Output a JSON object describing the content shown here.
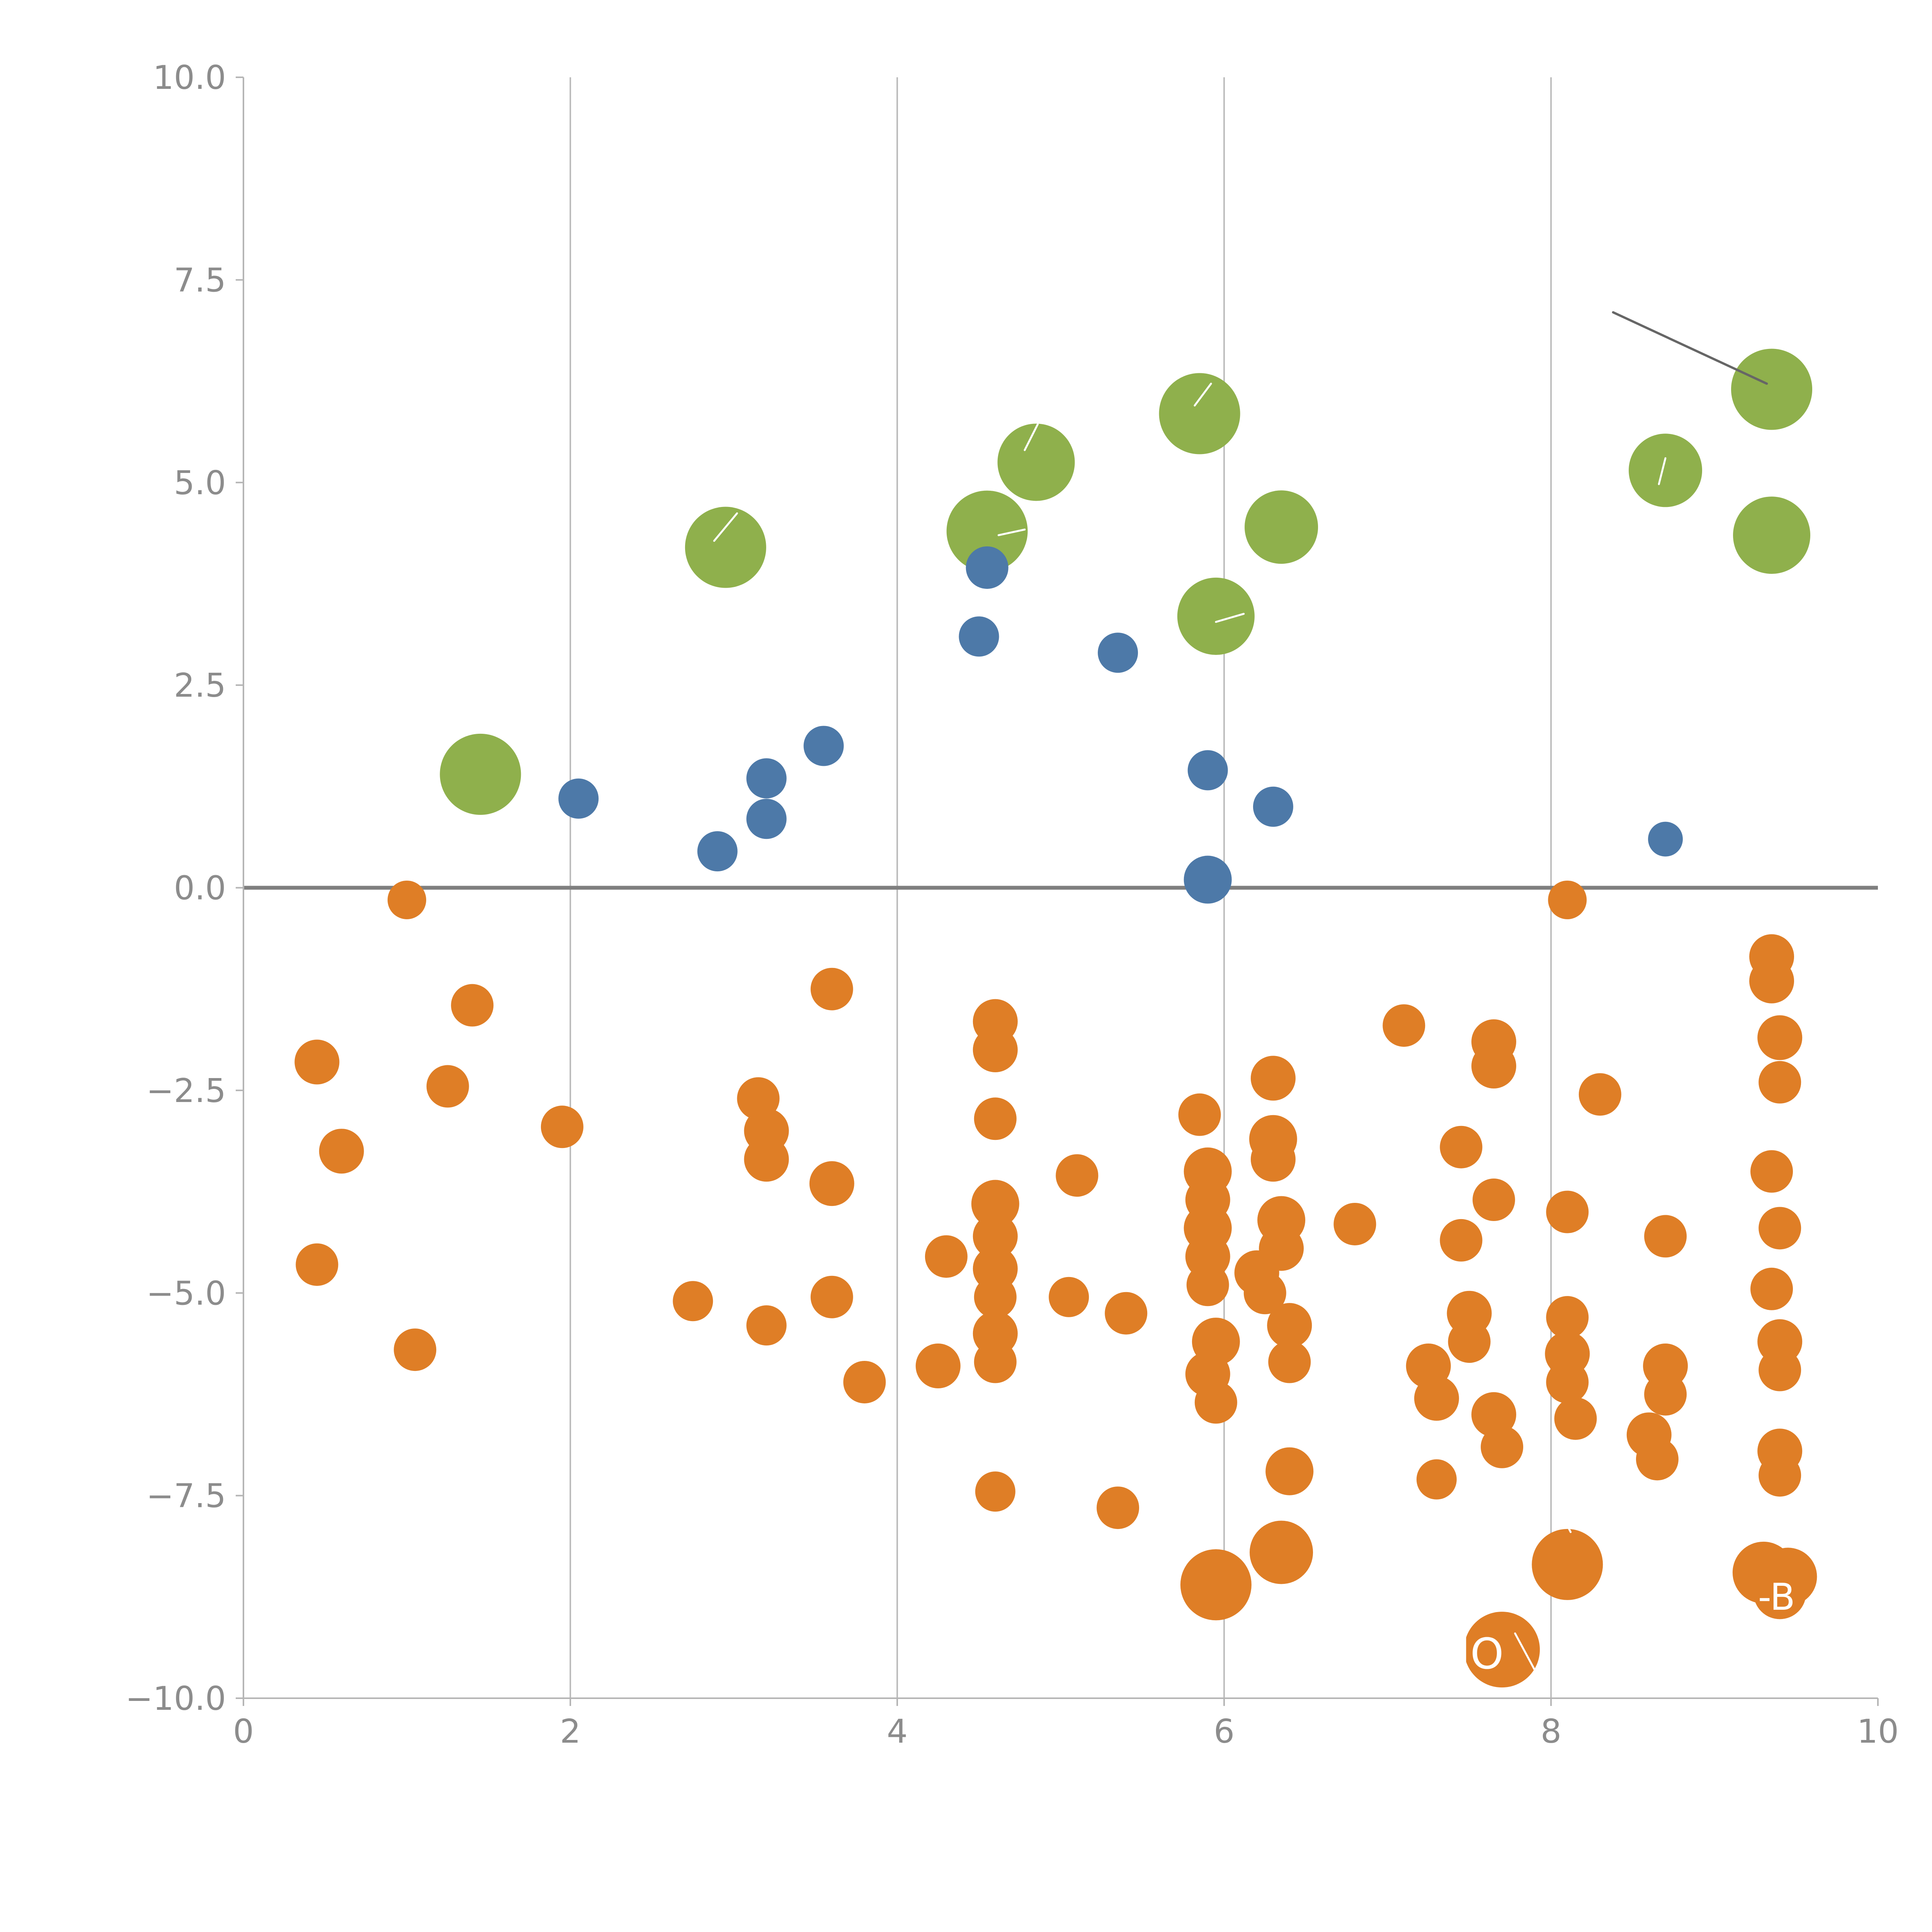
{
  "figure": {
    "background": "#ffffff"
  },
  "chart_data": {
    "type": "scatter",
    "title": "",
    "xlabel": "",
    "ylabel": "",
    "xlim": [
      0,
      10
    ],
    "ylim": [
      -10,
      10
    ],
    "grid": "vertical-only",
    "legend": "none",
    "x_ticks": [
      {
        "value": 0,
        "label": "0"
      },
      {
        "value": 2,
        "label": "2"
      },
      {
        "value": 4,
        "label": "4"
      },
      {
        "value": 6,
        "label": "6"
      },
      {
        "value": 8,
        "label": "8"
      },
      {
        "value": 10,
        "label": "10"
      }
    ],
    "y_ticks": [
      {
        "value": 10,
        "label": "10.0"
      },
      {
        "value": 7.5,
        "label": "7.5"
      },
      {
        "value": 5,
        "label": "5.0"
      },
      {
        "value": 2.5,
        "label": "2.5"
      },
      {
        "value": 0,
        "label": "0.0"
      },
      {
        "value": -2.5,
        "label": "−2.5"
      },
      {
        "value": -5,
        "label": "−5.0"
      },
      {
        "value": -7.5,
        "label": "−7.5"
      },
      {
        "value": -10,
        "label": "−10.0"
      }
    ],
    "gridline_x_values": [
      2,
      4,
      6,
      8
    ],
    "zero_line_y": 0,
    "style": {
      "grid_color": "#bdbdbd",
      "zero_line_color": "#7f7f7f",
      "spine_color": "#b5b5b5",
      "tick_label_color": "#8c8c8c",
      "tick_font_size": 85
    },
    "series": [
      {
        "name": "green",
        "color": "#8fb04c",
        "points": [
          {
            "x": 1.45,
            "y": 1.4,
            "r": 105
          },
          {
            "x": 2.95,
            "y": 4.2,
            "r": 105
          },
          {
            "x": 4.55,
            "y": 4.4,
            "r": 105
          },
          {
            "x": 4.85,
            "y": 5.25,
            "r": 100
          },
          {
            "x": 5.85,
            "y": 5.85,
            "r": 105
          },
          {
            "x": 5.95,
            "y": 3.35,
            "r": 100
          },
          {
            "x": 6.35,
            "y": 4.45,
            "r": 95
          },
          {
            "x": 8.7,
            "y": 5.15,
            "r": 95
          },
          {
            "x": 9.35,
            "y": 6.15,
            "r": 105
          },
          {
            "x": 9.35,
            "y": 4.35,
            "r": 100
          }
        ]
      },
      {
        "name": "blue",
        "color": "#4d79a8",
        "points": [
          {
            "x": 2.05,
            "y": 1.1,
            "r": 52
          },
          {
            "x": 2.9,
            "y": 0.45,
            "r": 52
          },
          {
            "x": 3.2,
            "y": 1.35,
            "r": 52
          },
          {
            "x": 3.2,
            "y": 0.85,
            "r": 52
          },
          {
            "x": 3.55,
            "y": 1.75,
            "r": 52
          },
          {
            "x": 4.55,
            "y": 3.95,
            "r": 55
          },
          {
            "x": 4.5,
            "y": 3.1,
            "r": 52
          },
          {
            "x": 5.35,
            "y": 2.9,
            "r": 52
          },
          {
            "x": 5.9,
            "y": 1.45,
            "r": 52
          },
          {
            "x": 6.3,
            "y": 1.0,
            "r": 52
          },
          {
            "x": 5.9,
            "y": 0.1,
            "r": 62
          },
          {
            "x": 8.7,
            "y": 0.6,
            "r": 45
          }
        ]
      },
      {
        "name": "orange",
        "color": "#df7e26",
        "points": [
          {
            "x": 1.0,
            "y": -0.15,
            "r": 50
          },
          {
            "x": 0.45,
            "y": -2.15,
            "r": 58
          },
          {
            "x": 0.6,
            "y": -3.25,
            "r": 58
          },
          {
            "x": 0.45,
            "y": -4.65,
            "r": 55
          },
          {
            "x": 1.05,
            "y": -5.7,
            "r": 55
          },
          {
            "x": 1.25,
            "y": -2.45,
            "r": 55
          },
          {
            "x": 1.4,
            "y": -1.45,
            "r": 55
          },
          {
            "x": 1.95,
            "y": -2.95,
            "r": 55
          },
          {
            "x": 2.75,
            "y": -5.1,
            "r": 52
          },
          {
            "x": 3.15,
            "y": -2.6,
            "r": 55
          },
          {
            "x": 3.2,
            "y": -3.0,
            "r": 58
          },
          {
            "x": 3.2,
            "y": -3.35,
            "r": 58
          },
          {
            "x": 3.2,
            "y": -5.4,
            "r": 52
          },
          {
            "x": 3.6,
            "y": -1.25,
            "r": 55
          },
          {
            "x": 3.6,
            "y": -3.65,
            "r": 58
          },
          {
            "x": 3.6,
            "y": -5.05,
            "r": 55
          },
          {
            "x": 3.8,
            "y": -6.1,
            "r": 55
          },
          {
            "x": 4.3,
            "y": -4.55,
            "r": 55
          },
          {
            "x": 4.25,
            "y": -5.9,
            "r": 58
          },
          {
            "x": 4.6,
            "y": -1.65,
            "r": 58
          },
          {
            "x": 4.6,
            "y": -2.0,
            "r": 58
          },
          {
            "x": 4.6,
            "y": -2.85,
            "r": 55
          },
          {
            "x": 4.6,
            "y": -3.9,
            "r": 62
          },
          {
            "x": 4.6,
            "y": -4.3,
            "r": 58
          },
          {
            "x": 4.6,
            "y": -4.7,
            "r": 58
          },
          {
            "x": 4.6,
            "y": -5.05,
            "r": 55
          },
          {
            "x": 4.6,
            "y": -5.5,
            "r": 58
          },
          {
            "x": 4.6,
            "y": -5.85,
            "r": 55
          },
          {
            "x": 4.6,
            "y": -7.45,
            "r": 52
          },
          {
            "x": 5.1,
            "y": -3.55,
            "r": 55
          },
          {
            "x": 5.05,
            "y": -5.05,
            "r": 52
          },
          {
            "x": 5.4,
            "y": -5.25,
            "r": 55
          },
          {
            "x": 5.35,
            "y": -7.65,
            "r": 55
          },
          {
            "x": 5.85,
            "y": -2.8,
            "r": 55
          },
          {
            "x": 5.9,
            "y": -3.5,
            "r": 62
          },
          {
            "x": 5.9,
            "y": -3.85,
            "r": 58
          },
          {
            "x": 5.9,
            "y": -4.2,
            "r": 62
          },
          {
            "x": 5.9,
            "y": -4.55,
            "r": 58
          },
          {
            "x": 5.9,
            "y": -4.9,
            "r": 55
          },
          {
            "x": 5.95,
            "y": -5.6,
            "r": 62
          },
          {
            "x": 5.9,
            "y": -6.0,
            "r": 58
          },
          {
            "x": 5.95,
            "y": -6.35,
            "r": 55
          },
          {
            "x": 5.95,
            "y": -8.6,
            "r": 92
          },
          {
            "x": 6.2,
            "y": -4.75,
            "r": 58
          },
          {
            "x": 6.25,
            "y": -5.0,
            "r": 55
          },
          {
            "x": 6.3,
            "y": -2.35,
            "r": 58
          },
          {
            "x": 6.3,
            "y": -3.1,
            "r": 62
          },
          {
            "x": 6.3,
            "y": -3.35,
            "r": 58
          },
          {
            "x": 6.35,
            "y": -4.1,
            "r": 62
          },
          {
            "x": 6.35,
            "y": -4.45,
            "r": 58
          },
          {
            "x": 6.4,
            "y": -5.4,
            "r": 58
          },
          {
            "x": 6.4,
            "y": -5.85,
            "r": 55
          },
          {
            "x": 6.4,
            "y": -7.2,
            "r": 62
          },
          {
            "x": 6.35,
            "y": -8.2,
            "r": 82
          },
          {
            "x": 6.8,
            "y": -4.15,
            "r": 55
          },
          {
            "x": 7.1,
            "y": -1.7,
            "r": 55
          },
          {
            "x": 7.25,
            "y": -5.9,
            "r": 58
          },
          {
            "x": 7.3,
            "y": -6.3,
            "r": 58
          },
          {
            "x": 7.3,
            "y": -7.3,
            "r": 52
          },
          {
            "x": 7.45,
            "y": -3.2,
            "r": 55
          },
          {
            "x": 7.45,
            "y": -4.35,
            "r": 55
          },
          {
            "x": 7.5,
            "y": -5.25,
            "r": 58
          },
          {
            "x": 7.5,
            "y": -5.6,
            "r": 55
          },
          {
            "x": 7.65,
            "y": -1.9,
            "r": 58
          },
          {
            "x": 7.65,
            "y": -2.2,
            "r": 58
          },
          {
            "x": 7.65,
            "y": -3.85,
            "r": 55
          },
          {
            "x": 7.65,
            "y": -6.5,
            "r": 58
          },
          {
            "x": 7.7,
            "y": -6.9,
            "r": 55
          },
          {
            "x": 7.7,
            "y": -9.4,
            "r": 98
          },
          {
            "x": 8.1,
            "y": -0.15,
            "r": 50
          },
          {
            "x": 8.1,
            "y": -4.0,
            "r": 55
          },
          {
            "x": 8.1,
            "y": -5.3,
            "r": 55
          },
          {
            "x": 8.1,
            "y": -5.75,
            "r": 58
          },
          {
            "x": 8.1,
            "y": -6.1,
            "r": 55
          },
          {
            "x": 8.15,
            "y": -6.55,
            "r": 55
          },
          {
            "x": 8.1,
            "y": -8.35,
            "r": 92
          },
          {
            "x": 8.3,
            "y": -2.55,
            "r": 55
          },
          {
            "x": 8.6,
            "y": -6.75,
            "r": 58
          },
          {
            "x": 8.65,
            "y": -7.05,
            "r": 55
          },
          {
            "x": 8.7,
            "y": -4.3,
            "r": 55
          },
          {
            "x": 8.7,
            "y": -5.9,
            "r": 58
          },
          {
            "x": 8.7,
            "y": -6.25,
            "r": 55
          },
          {
            "x": 9.35,
            "y": -0.85,
            "r": 58
          },
          {
            "x": 9.35,
            "y": -1.15,
            "r": 58
          },
          {
            "x": 9.4,
            "y": -1.85,
            "r": 58
          },
          {
            "x": 9.4,
            "y": -2.4,
            "r": 55
          },
          {
            "x": 9.35,
            "y": -3.5,
            "r": 55
          },
          {
            "x": 9.4,
            "y": -4.2,
            "r": 55
          },
          {
            "x": 9.35,
            "y": -4.95,
            "r": 55
          },
          {
            "x": 9.4,
            "y": -5.6,
            "r": 58
          },
          {
            "x": 9.4,
            "y": -5.95,
            "r": 55
          },
          {
            "x": 9.4,
            "y": -6.95,
            "r": 58
          },
          {
            "x": 9.4,
            "y": -7.25,
            "r": 55
          },
          {
            "x": 9.3,
            "y": -8.45,
            "r": 80
          },
          {
            "x": 9.45,
            "y": -8.5,
            "r": 75
          },
          {
            "x": 9.4,
            "y": -8.7,
            "r": 68
          }
        ]
      }
    ],
    "annotations": [
      {
        "type": "line",
        "x1": 8.38,
        "y1": 7.1,
        "x2": 9.32,
        "y2": 6.22,
        "color": "#666666",
        "width": 6
      },
      {
        "type": "line",
        "x1": 2.88,
        "y1": 4.28,
        "x2": 3.02,
        "y2": 4.62,
        "color": "#ffffff",
        "width": 5
      },
      {
        "type": "line",
        "x1": 2.38,
        "y1": 2.28,
        "x2": 2.52,
        "y2": 2.42,
        "color": "#ffffff",
        "width": 5
      },
      {
        "type": "line",
        "x1": 4.78,
        "y1": 5.4,
        "x2": 4.86,
        "y2": 5.72,
        "color": "#ffffff",
        "width": 5
      },
      {
        "type": "line",
        "x1": 4.62,
        "y1": 4.35,
        "x2": 4.78,
        "y2": 4.42,
        "color": "#ffffff",
        "width": 5
      },
      {
        "type": "line",
        "x1": 5.82,
        "y1": 5.95,
        "x2": 5.92,
        "y2": 6.22,
        "color": "#ffffff",
        "width": 5
      },
      {
        "type": "line",
        "x1": 5.95,
        "y1": 3.28,
        "x2": 6.12,
        "y2": 3.38,
        "color": "#ffffff",
        "width": 5
      },
      {
        "type": "line",
        "x1": 8.66,
        "y1": 4.98,
        "x2": 8.7,
        "y2": 5.3,
        "color": "#ffffff",
        "width": 5
      },
      {
        "type": "line",
        "x1": 8.02,
        "y1": -7.55,
        "x2": 8.12,
        "y2": -7.95,
        "color": "#ffffff",
        "width": 5
      },
      {
        "type": "line",
        "x1": 7.78,
        "y1": -9.2,
        "x2": 7.9,
        "y2": -9.65,
        "color": "#ffffff",
        "width": 5
      },
      {
        "type": "text",
        "x": 7.57,
        "y": -9.45,
        "text": "JO",
        "color": "#ffffff",
        "size": 110,
        "anchor": "middle"
      },
      {
        "type": "text",
        "x": 9.38,
        "y": -8.75,
        "text": "-B",
        "color": "#ffffff",
        "size": 95,
        "anchor": "middle"
      }
    ],
    "layout": {
      "plot_left": 630,
      "plot_right": 4860,
      "plot_top": 200,
      "plot_bottom": 4395,
      "tick_length": 20
    }
  }
}
